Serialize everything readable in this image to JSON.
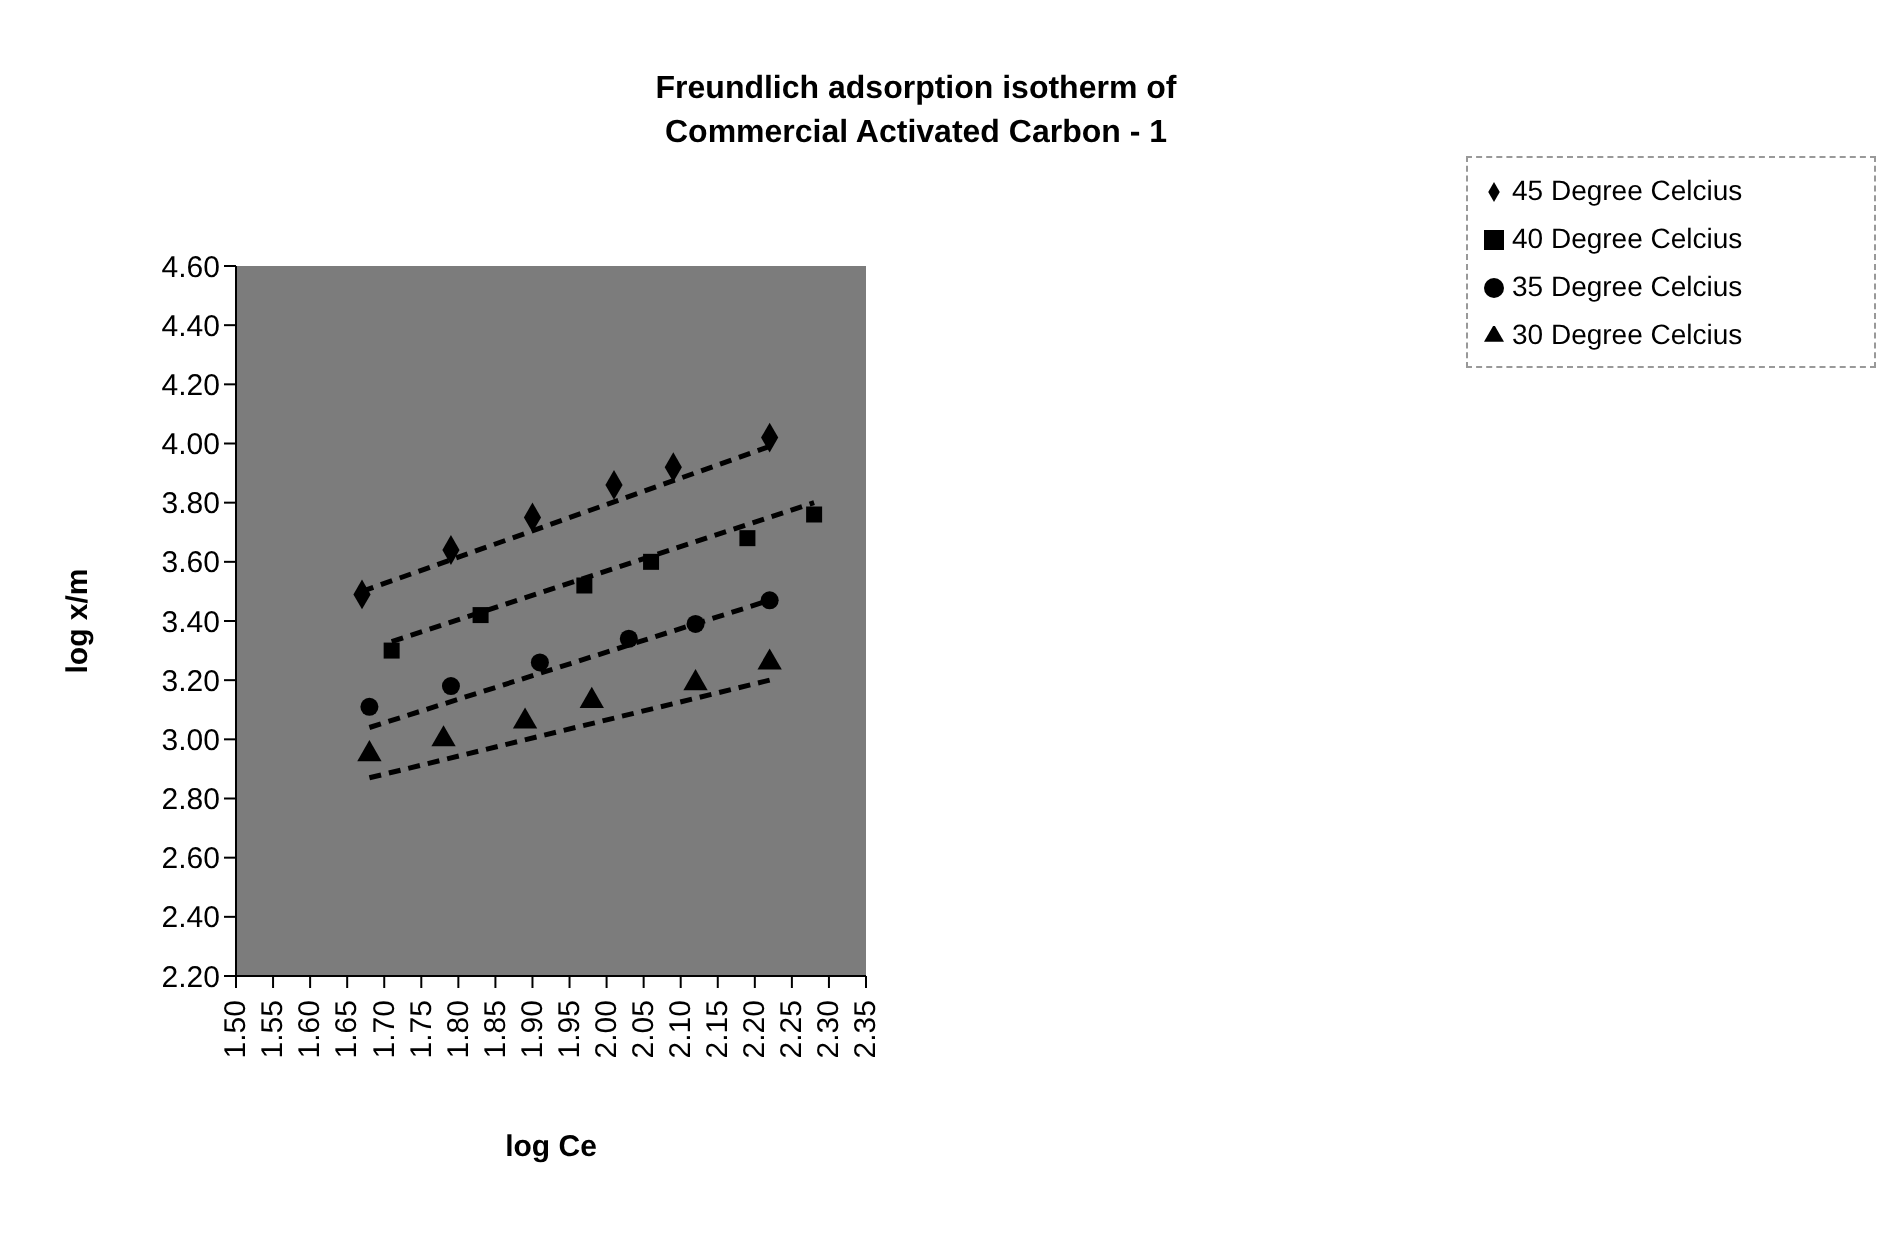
{
  "chart_data": {
    "type": "scatter",
    "title": "Freundlich adsorption isotherm of\nCommercial Activated Carbon - 1",
    "xlabel": "log Ce",
    "ylabel": "log x/m",
    "legend": "top right",
    "grid": false,
    "xlim": [
      1.5,
      2.35
    ],
    "xticks": [
      {
        "value": 1.5,
        "label": "1.50"
      },
      {
        "value": 1.55,
        "label": "1.55"
      },
      {
        "value": 1.6,
        "label": "1.60"
      },
      {
        "value": 1.65,
        "label": "1.65"
      },
      {
        "value": 1.7,
        "label": "1.70"
      },
      {
        "value": 1.75,
        "label": "1.75"
      },
      {
        "value": 1.8,
        "label": "1.80"
      },
      {
        "value": 1.85,
        "label": "1.85"
      },
      {
        "value": 1.9,
        "label": "1.90"
      },
      {
        "value": 1.95,
        "label": "1.95"
      },
      {
        "value": 2,
        "label": "2.00"
      },
      {
        "value": 2.05,
        "label": "2.05"
      },
      {
        "value": 2.1,
        "label": "2.10"
      },
      {
        "value": 2.15,
        "label": "2.15"
      },
      {
        "value": 2.2,
        "label": "2.20"
      },
      {
        "value": 2.25,
        "label": "2.25"
      },
      {
        "value": 2.3,
        "label": "2.30"
      },
      {
        "value": 2.35,
        "label": "2.35"
      }
    ],
    "ylim": [
      2.2,
      4.6
    ],
    "yticks": [
      {
        "value": 2.2,
        "label": "2.20"
      },
      {
        "value": 2.4,
        "label": "2.40"
      },
      {
        "value": 2.6,
        "label": "2.60"
      },
      {
        "value": 2.8,
        "label": "2.80"
      },
      {
        "value": 3,
        "label": "3.00"
      },
      {
        "value": 3.2,
        "label": "3.20"
      },
      {
        "value": 3.4,
        "label": "3.40"
      },
      {
        "value": 3.6,
        "label": "3.60"
      },
      {
        "value": 3.8,
        "label": "3.80"
      },
      {
        "value": 4,
        "label": "4.00"
      },
      {
        "value": 4.2,
        "label": "4.20"
      },
      {
        "value": 4.4,
        "label": "4.40"
      },
      {
        "value": 4.6,
        "label": "4.60"
      }
    ],
    "series": [
      {
        "name": "45 Degree Celcius",
        "marker": "diamond",
        "color": "#000000",
        "x": [
          1.67,
          1.79,
          1.9,
          2.01,
          2.09,
          2.22
        ],
        "values": [
          3.49,
          3.64,
          3.75,
          3.86,
          3.92,
          4.02
        ]
      },
      {
        "name": "40 Degree Celcius",
        "marker": "square",
        "color": "#000000",
        "x": [
          1.71,
          1.83,
          1.97,
          2.06,
          2.19,
          2.28
        ],
        "values": [
          3.3,
          3.42,
          3.52,
          3.6,
          3.68,
          3.76
        ]
      },
      {
        "name": "35 Degree Celcius",
        "marker": "circle",
        "color": "#000000",
        "x": [
          1.68,
          1.79,
          1.91,
          2.03,
          2.12,
          2.22
        ],
        "values": [
          3.11,
          3.18,
          3.26,
          3.34,
          3.39,
          3.47
        ]
      },
      {
        "name": "30 Degree Celcius",
        "marker": "triangle",
        "color": "#000000",
        "x": [
          1.68,
          1.78,
          1.89,
          1.98,
          2.12,
          2.22
        ],
        "values": [
          2.95,
          3.0,
          3.06,
          3.13,
          3.19,
          3.26
        ]
      },
      {
        "type": "line",
        "line_style": "dashed",
        "color": "#000000",
        "x": [
          1.67,
          2.22
        ],
        "values": [
          3.5,
          3.99
        ]
      },
      {
        "type": "line",
        "line_style": "dashed",
        "color": "#000000",
        "x": [
          1.71,
          2.28
        ],
        "values": [
          3.33,
          3.8
        ]
      },
      {
        "type": "line",
        "line_style": "dashed",
        "color": "#000000",
        "x": [
          1.68,
          2.22
        ],
        "values": [
          3.04,
          3.47
        ]
      },
      {
        "type": "line",
        "line_style": "dashed",
        "color": "#000000",
        "x": [
          1.68,
          2.22
        ],
        "values": [
          2.87,
          3.2
        ]
      }
    ]
  }
}
